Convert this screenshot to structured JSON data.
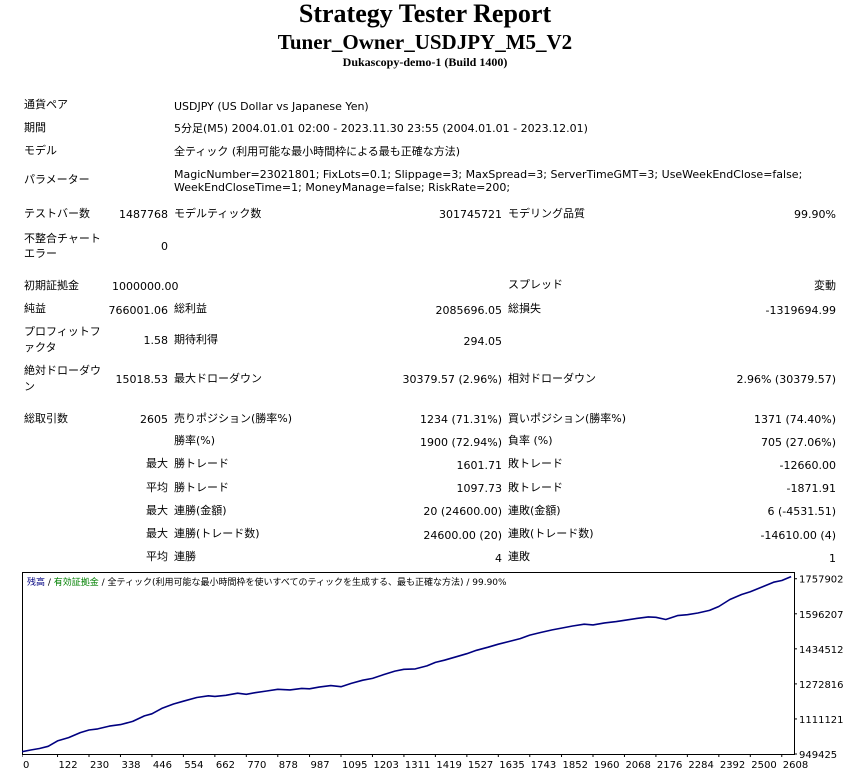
{
  "report": {
    "title": "Strategy Tester Report",
    "ea_name": "Tuner_Owner_USDJPY_M5_V2",
    "server": "Dukascopy-demo-1 (Build 1400)"
  },
  "info": {
    "pair_label": "通貨ペア",
    "pair_value": "USDJPY (US Dollar vs Japanese Yen)",
    "period_label": "期間",
    "period_value": "5分足(M5) 2004.01.01 02:00 - 2023.11.30 23:55 (2004.01.01 - 2023.12.01)",
    "model_label": "モデル",
    "model_value": "全ティック (利用可能な最小時間枠による最も正確な方法)",
    "params_label": "パラメーター",
    "params_value": "MagicNumber=23021801; FixLots=0.1; Slippage=3; MaxSpread=3; ServerTimeGMT=3; UseWeekEndClose=false; WeekEndCloseTime=1; MoneyManage=false; RiskRate=200;"
  },
  "stats": {
    "bars_label": "テストバー数",
    "bars_value": "1487768",
    "ticks_label": "モデルティック数",
    "ticks_value": "301745721",
    "quality_label": "モデリング品質",
    "quality_value": "99.90%",
    "mismatch_label": "不整合チャートエラー",
    "mismatch_value": "0",
    "deposit_label": "初期証拠金",
    "deposit_value": "1000000.00",
    "spread_label": "スプレッド",
    "spread_value": "変動",
    "net_label": "純益",
    "net_value": "766001.06",
    "gross_profit_label": "総利益",
    "gross_profit_value": "2085696.05",
    "gross_loss_label": "総損失",
    "gross_loss_value": "-1319694.99",
    "pf_label": "プロフィットファクタ",
    "pf_value": "1.58",
    "expected_label": "期待利得",
    "expected_value": "294.05",
    "abs_dd_label": "絶対ドローダウン",
    "abs_dd_value": "15018.53",
    "max_dd_label": "最大ドローダウン",
    "max_dd_value": "30379.57 (2.96%)",
    "rel_dd_label": "相対ドローダウン",
    "rel_dd_value": "2.96% (30379.57)",
    "trades_label": "総取引数",
    "trades_value": "2605",
    "short_label": "売りポジション(勝率%)",
    "short_value": "1234 (71.31%)",
    "long_label": "買いポジション(勝率%)",
    "long_value": "1371 (74.40%)",
    "win_label": "勝率(%)",
    "win_value": "1900 (72.94%)",
    "loss_label": "負率 (%)",
    "loss_value": "705 (27.06%)",
    "max_label": "最大",
    "avg_label": "平均",
    "win_trade_label": "勝トレード",
    "loss_trade_label": "敗トレード",
    "max_win_value": "1601.71",
    "max_loss_value": "-12660.00",
    "avg_win_value": "1097.73",
    "avg_loss_value": "-1871.91",
    "cons_win_amt_label": "連勝(金額)",
    "cons_win_amt_value": "20 (24600.00)",
    "cons_loss_amt_label": "連敗(金額)",
    "cons_loss_amt_value": "6 (-4531.51)",
    "cons_win_cnt_label": "連勝(トレード数)",
    "cons_win_cnt_value": "24600.00 (20)",
    "cons_loss_cnt_label": "連敗(トレード数)",
    "cons_loss_cnt_value": "-14610.00 (4)",
    "avg_cons_win_label": "連勝",
    "avg_cons_win_value": "4",
    "avg_cons_loss_label": "連敗",
    "avg_cons_loss_value": "1"
  },
  "chart_data": {
    "type": "line",
    "legend": [
      {
        "text": "残高",
        "color": "#000080"
      },
      {
        "text": " / ",
        "color": "#000000"
      },
      {
        "text": "有効証拠金",
        "color": "#008000"
      },
      {
        "text": " / 全ティック(利用可能な最小時間枠を使いすべてのティックを生成する、最も正確な方法) / 99.90%",
        "color": "#000000"
      }
    ],
    "line_color": "#000080",
    "xlim": [
      0,
      2650
    ],
    "ylim": [
      949425,
      1789000
    ],
    "x_ticks": [
      "0",
      "122",
      "230",
      "338",
      "446",
      "554",
      "662",
      "770",
      "878",
      "987",
      "1095",
      "1203",
      "1311",
      "1419",
      "1527",
      "1635",
      "1743",
      "1852",
      "1960",
      "2068",
      "2176",
      "2284",
      "2392",
      "2500",
      "2608"
    ],
    "y_ticks": [
      "1757902",
      "1596207",
      "1434512",
      "1272816",
      "1111121",
      "949425"
    ],
    "series": [
      {
        "x": [
          0,
          30,
          60,
          90,
          122,
          160,
          200,
          230,
          260,
          300,
          338,
          380,
          420,
          446,
          480,
          520,
          554,
          600,
          640,
          662,
          700,
          740,
          770,
          800,
          840,
          878,
          920,
          960,
          987,
          1020,
          1060,
          1095,
          1130,
          1170,
          1203,
          1240,
          1280,
          1311,
          1350,
          1390,
          1419,
          1450,
          1490,
          1527,
          1560,
          1600,
          1635,
          1670,
          1710,
          1743,
          1780,
          1820,
          1852,
          1890,
          1930,
          1960,
          2000,
          2040,
          2068,
          2110,
          2150,
          2176,
          2210,
          2250,
          2284,
          2320,
          2360,
          2392,
          2430,
          2470,
          2500,
          2540,
          2580,
          2608,
          2640
        ],
        "y": [
          960000,
          968000,
          975000,
          985000,
          1010000,
          1025000,
          1048000,
          1060000,
          1065000,
          1078000,
          1085000,
          1100000,
          1125000,
          1135000,
          1160000,
          1180000,
          1193000,
          1210000,
          1218000,
          1215000,
          1220000,
          1230000,
          1225000,
          1232000,
          1240000,
          1248000,
          1245000,
          1252000,
          1250000,
          1258000,
          1265000,
          1260000,
          1275000,
          1290000,
          1298000,
          1315000,
          1332000,
          1340000,
          1342000,
          1356000,
          1372000,
          1382000,
          1398000,
          1412000,
          1428000,
          1442000,
          1456000,
          1468000,
          1482000,
          1498000,
          1510000,
          1522000,
          1530000,
          1540000,
          1548000,
          1545000,
          1554000,
          1560000,
          1566000,
          1575000,
          1582000,
          1580000,
          1570000,
          1588000,
          1592000,
          1600000,
          1612000,
          1630000,
          1662000,
          1685000,
          1698000,
          1720000,
          1742000,
          1750000,
          1768000
        ]
      }
    ]
  }
}
